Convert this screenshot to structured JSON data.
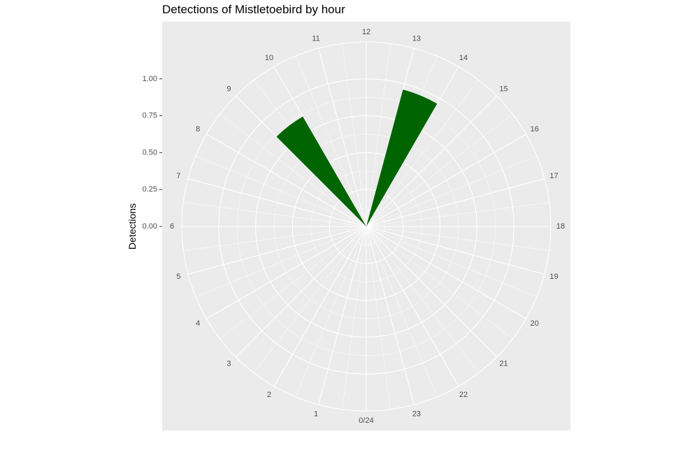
{
  "chart_data": {
    "type": "bar",
    "coord": "polar",
    "title": "Detections of Mistletoebird by hour",
    "xlabel": "",
    "ylabel": "Detections",
    "ylim": [
      0,
      1.25
    ],
    "y_ticks": [
      "0.00",
      "0.25",
      "0.50",
      "0.75",
      "1.00"
    ],
    "y_tick_values": [
      0,
      0.25,
      0.5,
      0.75,
      1.0
    ],
    "categories": [
      "0/24",
      "1",
      "2",
      "3",
      "4",
      "5",
      "6",
      "7",
      "8",
      "9",
      "10",
      "11",
      "12",
      "13",
      "14",
      "15",
      "16",
      "17",
      "18",
      "19",
      "20",
      "21",
      "22",
      "23"
    ],
    "values": [
      0,
      0,
      0,
      0,
      0,
      0,
      0,
      0,
      0,
      0.86,
      0,
      0,
      0,
      0.96,
      0,
      0,
      0,
      0,
      0,
      0,
      0,
      0,
      0,
      0
    ],
    "bar_color": "#006400",
    "panel_color": "#ebebeb",
    "grid_color": "#ffffff",
    "grid": true
  }
}
